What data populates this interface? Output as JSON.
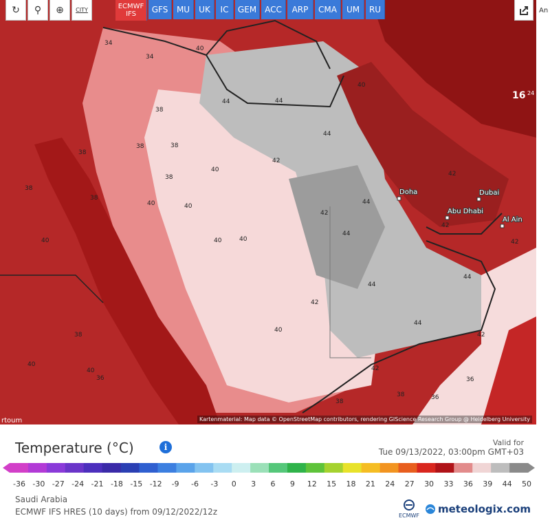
{
  "toolbar": {
    "refresh_icon": "refresh-icon",
    "location_icon": "location-pin-icon",
    "zoom_icon": "zoom-icon",
    "city_label": "CITY"
  },
  "models": [
    {
      "label": "ECMWF",
      "sub": "IFS",
      "active": true
    },
    {
      "label": "GFS"
    },
    {
      "label": "MU"
    },
    {
      "label": "UK"
    },
    {
      "label": "IC"
    },
    {
      "label": "GEM"
    },
    {
      "label": "ACC"
    },
    {
      "label": "ARP"
    },
    {
      "label": "CMA"
    },
    {
      "label": "UM"
    },
    {
      "label": "RU"
    }
  ],
  "edge_text": "An",
  "map": {
    "cities": [
      {
        "name": "Doha"
      },
      {
        "name": "Dubai"
      },
      {
        "name": "Abu Dhabi"
      },
      {
        "name": "Al Ain"
      }
    ],
    "value_labels": [
      "40",
      "34",
      "38",
      "38",
      "38",
      "34",
      "38",
      "40",
      "40",
      "40",
      "38",
      "38",
      "40",
      "38",
      "36",
      "40",
      "40",
      "42",
      "42",
      "44",
      "44",
      "44",
      "44",
      "44",
      "44",
      "44",
      "44",
      "42",
      "42",
      "40",
      "40",
      "42",
      "38",
      "38",
      "36",
      "36",
      "42",
      "42",
      "40",
      "38",
      "40",
      "16",
      "24",
      "42"
    ],
    "corner_label": "rtoum",
    "attribution": "Kartenmaterial: Map data © OpenStreetMap contributors, rendering GIScience Research Group @ Heidelberg University"
  },
  "legend": {
    "title": "Temperature (°C)",
    "valid_label": "Valid for",
    "valid_date": "Tue 09/13/2022, 03:00pm GMT+03",
    "ticks": [
      "-36",
      "-30",
      "-27",
      "-24",
      "-21",
      "-18",
      "-15",
      "-12",
      "-9",
      "-6",
      "-3",
      "0",
      "3",
      "6",
      "9",
      "12",
      "15",
      "18",
      "21",
      "24",
      "27",
      "30",
      "33",
      "36",
      "39",
      "44",
      "50"
    ],
    "colors": [
      "#d23fc8",
      "#b23ad6",
      "#8a3ad9",
      "#6a35c9",
      "#4c2fbd",
      "#3a2aa8",
      "#2a3fb3",
      "#2f5fd0",
      "#3c7fe0",
      "#5aa3ea",
      "#83c3f0",
      "#a9dcf3",
      "#cdeff0",
      "#9be0b8",
      "#55c77a",
      "#2fb34a",
      "#5ec33a",
      "#a5d22f",
      "#e8e22a",
      "#f5bd23",
      "#f29420",
      "#e85e1e",
      "#d9261e",
      "#b01318",
      "#e28b8b",
      "#f0d5d5",
      "#bdbdbd",
      "#8a8a8a"
    ],
    "info_icon": "info-icon",
    "region": "Saudi Arabia",
    "model_run": "ECMWF IFS HRES (10 days) from 09/12/2022/12z",
    "brand": "meteologix.com",
    "ecmwf_label": "ECMWF"
  }
}
